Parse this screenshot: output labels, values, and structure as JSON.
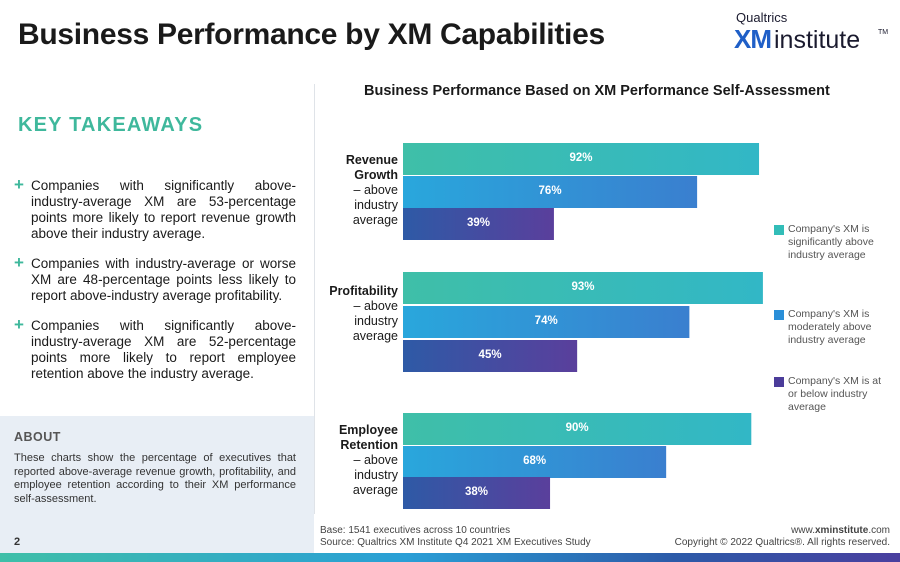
{
  "header": {
    "title": "Business Performance by XM Capabilities",
    "logo_small": "Qualtrics",
    "logo_xm": "XM",
    "logo_institute": "institute",
    "logo_tm": "TM"
  },
  "key_takeaways": {
    "title": "KEY TAKEAWAYS",
    "plus_symbol": "+",
    "items": [
      "Companies with significantly above-industry-average XM are 53-percentage points more likely to report revenue growth above their industry average.",
      "Companies with industry-average or worse XM are 48-percentage points less likely to report above-industry average profitability.",
      "Companies with significantly above-industry-average XM are 52-percentage points more likely to report employee retention above the industry average."
    ]
  },
  "about": {
    "title": "ABOUT",
    "text": "These charts show the percentage of executives that reported above-average revenue growth, profitability, and employee retention according to their XM performance self-assessment."
  },
  "page_number": "2",
  "footer": {
    "base": "Base: 1541 executives across 10 countries",
    "source": "Source: Qualtrics XM Institute Q4 2021 XM Executives Study",
    "website_prefix": "www.",
    "website_bold": "xminstitute",
    "website_suffix": ".com",
    "copyright": "Copyright © 2022 Qualtrics®. All rights reserved."
  },
  "colors": {
    "accent_green": "#3fb89c",
    "series_high": "#3fbfa8",
    "series_mid": "#2a8fd8",
    "series_low": "#4b3c9a"
  },
  "chart_data": {
    "type": "bar",
    "orientation": "horizontal",
    "title": "Business Performance Based on XM Performance Self-Assessment",
    "categories": [
      {
        "bold": "Revenue Growth",
        "rest": "– above industry average"
      },
      {
        "bold": "Profitability",
        "rest": "– above industry average"
      },
      {
        "bold": "Employee Retention",
        "rest": "– above industry average"
      }
    ],
    "series": [
      {
        "name": "Company's XM is significantly above industry average",
        "values": [
          92,
          93,
          90
        ],
        "labels": [
          "92%",
          "93%",
          "90%"
        ]
      },
      {
        "name": "Company's XM is moderately above industry average",
        "values": [
          76,
          74,
          68
        ],
        "labels": [
          "76%",
          "74%",
          "68%"
        ]
      },
      {
        "name": "Company's XM is at or below industry average",
        "values": [
          39,
          45,
          38
        ],
        "labels": [
          "39%",
          "45%",
          "38%"
        ]
      }
    ],
    "xlim": [
      0,
      100
    ],
    "grid": false,
    "legend_position": "right"
  }
}
